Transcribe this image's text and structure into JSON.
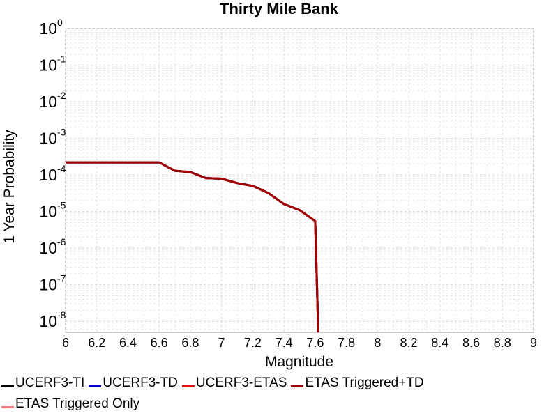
{
  "chart_data": {
    "type": "line",
    "title": "Thirty Mile Bank",
    "xlabel": "Magnitude",
    "ylabel": "1 Year Probability",
    "xlim": [
      6,
      9
    ],
    "ylim_log10": [
      -8.3,
      0
    ],
    "y_scale": "log",
    "grid": true,
    "legend_placement": "bottom",
    "x_ticks": [
      "6",
      "6.2",
      "6.4",
      "6.6",
      "6.8",
      "7",
      "7.2",
      "7.4",
      "7.6",
      "7.8",
      "8",
      "8.2",
      "8.4",
      "8.6",
      "8.8",
      "9"
    ],
    "y_ticks": [
      {
        "base": "10",
        "exp": "0",
        "log10": 0
      },
      {
        "base": "10",
        "exp": "-1",
        "log10": -1
      },
      {
        "base": "10",
        "exp": "-2",
        "log10": -2
      },
      {
        "base": "10",
        "exp": "-3",
        "log10": -3
      },
      {
        "base": "10",
        "exp": "-4",
        "log10": -4
      },
      {
        "base": "10",
        "exp": "-5",
        "log10": -5
      },
      {
        "base": "10",
        "exp": "-6",
        "log10": -6
      },
      {
        "base": "10",
        "exp": "-7",
        "log10": -7
      },
      {
        "base": "10",
        "exp": "-8",
        "log10": -8
      }
    ],
    "series": [
      {
        "name": "UCERF3-TI",
        "color": "#000000",
        "x": [
          6.0,
          6.1,
          6.2,
          6.3,
          6.4,
          6.5,
          6.6,
          6.7,
          6.8,
          6.9,
          7.0,
          7.1,
          7.2,
          7.3,
          7.4,
          7.5,
          7.6,
          7.62
        ],
        "y": [
          0.00022,
          0.00022,
          0.00022,
          0.00022,
          0.00022,
          0.00022,
          0.00022,
          0.00013,
          0.00012,
          8.2e-05,
          7.9e-05,
          6e-05,
          5e-05,
          3.2e-05,
          1.6e-05,
          1.1e-05,
          5.5e-06,
          5e-09
        ]
      },
      {
        "name": "UCERF3-TD",
        "color": "#0000cc",
        "x": [
          6.0,
          6.1,
          6.2,
          6.3,
          6.4,
          6.5,
          6.6,
          6.7,
          6.8,
          6.9,
          7.0,
          7.1,
          7.2,
          7.3,
          7.4,
          7.5,
          7.6,
          7.62
        ],
        "y": [
          0.00022,
          0.00022,
          0.00022,
          0.00022,
          0.00022,
          0.00022,
          0.00022,
          0.00013,
          0.00012,
          8.2e-05,
          7.9e-05,
          6e-05,
          5e-05,
          3.2e-05,
          1.6e-05,
          1.1e-05,
          5.5e-06,
          5e-09
        ]
      },
      {
        "name": "UCERF3-ETAS",
        "color": "#ee1111",
        "x": [
          6.0,
          6.1,
          6.2,
          6.3,
          6.4,
          6.5,
          6.6,
          6.7,
          6.8,
          6.9,
          7.0,
          7.1,
          7.2,
          7.3,
          7.4,
          7.5,
          7.6,
          7.62
        ],
        "y": [
          0.00022,
          0.00022,
          0.00022,
          0.00022,
          0.00022,
          0.00022,
          0.00022,
          0.00013,
          0.00012,
          8.2e-05,
          7.9e-05,
          6e-05,
          5e-05,
          3.2e-05,
          1.6e-05,
          1.1e-05,
          5.5e-06,
          5e-09
        ]
      },
      {
        "name": "ETAS Triggered+TD",
        "color": "#a00000",
        "x": [
          6.0,
          6.1,
          6.2,
          6.3,
          6.4,
          6.5,
          6.6,
          6.7,
          6.8,
          6.9,
          7.0,
          7.1,
          7.2,
          7.3,
          7.4,
          7.5,
          7.6,
          7.62
        ],
        "y": [
          0.00022,
          0.00022,
          0.00022,
          0.00022,
          0.00022,
          0.00022,
          0.00022,
          0.00013,
          0.00012,
          8.2e-05,
          7.9e-05,
          6e-05,
          5e-05,
          3.2e-05,
          1.6e-05,
          1.1e-05,
          5.5e-06,
          5e-09
        ]
      },
      {
        "name": "ETAS Triggered Only",
        "color": "#f08080",
        "x": [],
        "y": []
      }
    ]
  }
}
